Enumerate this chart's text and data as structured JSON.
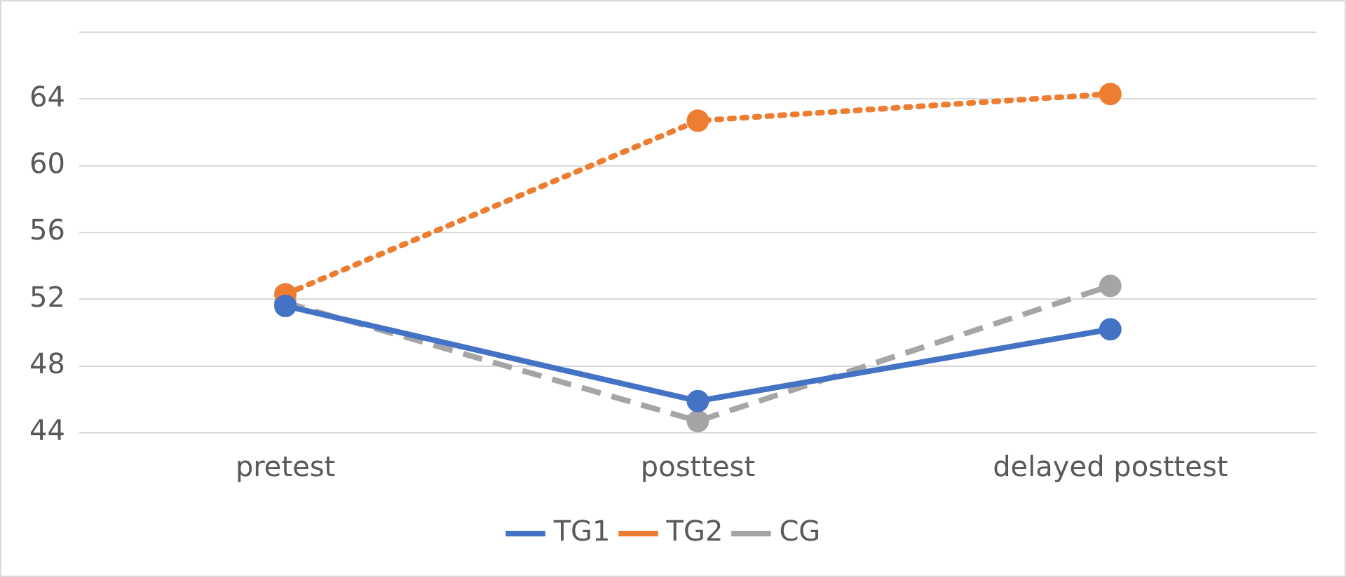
{
  "chart_data": {
    "type": "line",
    "categories": [
      "pretest",
      "posttest",
      "delayed posttest"
    ],
    "series": [
      {
        "name": "TG1",
        "color": "#4472c4",
        "line_style": "solid",
        "values": [
          51.6,
          45.9,
          50.2
        ]
      },
      {
        "name": "TG2",
        "color": "#ed7d31",
        "line_style": "dotted",
        "values": [
          52.3,
          62.7,
          64.3
        ]
      },
      {
        "name": "CG",
        "color": "#a5a5a5",
        "line_style": "dashed",
        "values": [
          51.8,
          44.7,
          52.8
        ]
      }
    ],
    "ylim": [
      44,
      68
    ],
    "yticks": [
      44,
      48,
      52,
      56,
      60,
      64,
      {
        "value": 68,
        "label": null
      }
    ],
    "grid": "y",
    "legend": "bottom",
    "marker": "circle"
  }
}
